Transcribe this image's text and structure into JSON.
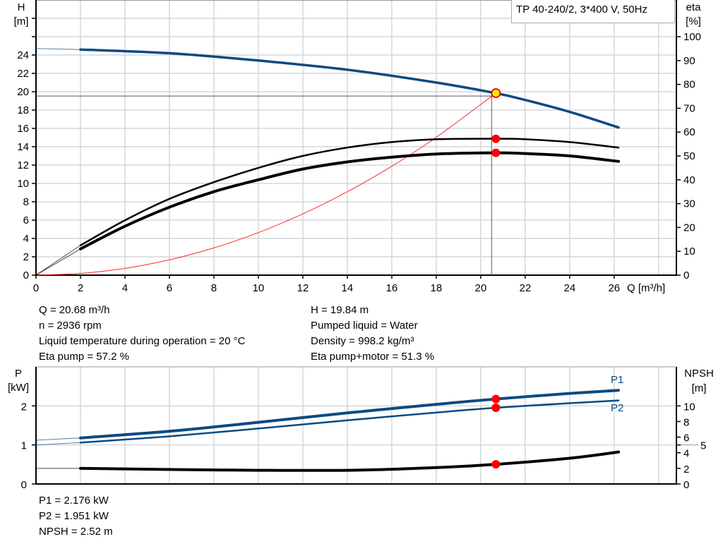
{
  "legend_title": "TP 40-240/2, 3*400 V, 50Hz",
  "colors": {
    "head": "#0a4a82",
    "power": "#0a4a82",
    "eta": "#000000",
    "system": "#ff2a2a",
    "marker": "#ff0000",
    "op_marker_fill": "#ffee00",
    "grid": "#d4d7db"
  },
  "readout_top": {
    "left": [
      "Q = 20.68 m³/h",
      "n = 2936 rpm",
      "Liquid temperature during operation = 20 °C",
      "Eta pump = 57.2 %"
    ],
    "right": [
      "H = 19.84 m",
      "Pumped liquid = Water",
      "Density = 998.2 kg/m³",
      "Eta pump+motor = 51.3 %"
    ]
  },
  "readout_bottom": [
    "P1 = 2.176 kW",
    "P2 = 1.951 kW",
    "NPSH = 2.52 m"
  ],
  "chart_data": [
    {
      "type": "line",
      "xlabel": "Q [m³/h]",
      "ylabel_left": [
        "H",
        "[m]"
      ],
      "ylabel_right": [
        "eta",
        "[%]"
      ],
      "xlim": [
        0,
        28.8
      ],
      "ylim_left": [
        0,
        30
      ],
      "ylim_right": [
        0,
        115.4
      ],
      "x_ticks": [
        0,
        2,
        4,
        6,
        8,
        10,
        12,
        14,
        16,
        18,
        20,
        22,
        24,
        26
      ],
      "y_ticks_left": [
        0,
        2,
        4,
        6,
        8,
        10,
        12,
        14,
        16,
        18,
        20,
        22,
        24
      ],
      "y_ticks_right": [
        0,
        10,
        20,
        30,
        40,
        50,
        60,
        70,
        80,
        90,
        100
      ],
      "grid": true,
      "operating_point": {
        "Q": 20.68,
        "H": 19.84,
        "eta_pump": 57.2,
        "eta_pump_motor": 51.3
      },
      "series": [
        {
          "axis": "left",
          "x": [
            0,
            2,
            6,
            10,
            14,
            18,
            20.68,
            22,
            24,
            26.2
          ],
          "y": [
            24.7,
            24.6,
            24.2,
            23.4,
            22.4,
            21.0,
            19.84,
            19.1,
            17.8,
            16.1
          ]
        },
        {
          "axis": "right",
          "x": [
            0,
            2,
            4,
            6,
            8,
            10,
            12,
            14,
            16,
            18,
            20.68,
            22,
            24,
            26.2
          ],
          "y": [
            0,
            12.5,
            23,
            32,
            39,
            45,
            50,
            53.5,
            55.8,
            57,
            57.2,
            57,
            55.8,
            53.5
          ]
        },
        {
          "axis": "right",
          "x": [
            0,
            2,
            4,
            6,
            8,
            10,
            12,
            14,
            16,
            18,
            20.68,
            22,
            24,
            26.2
          ],
          "y": [
            0,
            11,
            20.5,
            28.5,
            35,
            40,
            44.5,
            47.5,
            49.5,
            50.8,
            51.3,
            51,
            50,
            47.7
          ]
        },
        {
          "axis": "left",
          "x": [
            0,
            2,
            4,
            6,
            8,
            10,
            12,
            14,
            16,
            18,
            20.68
          ],
          "y": [
            0,
            0.19,
            0.74,
            1.67,
            2.97,
            4.64,
            6.68,
            9.09,
            11.87,
            15.03,
            19.84
          ]
        }
      ]
    },
    {
      "type": "line",
      "ylabel_left": [
        "P",
        "[kW]"
      ],
      "ylabel_right": [
        "NPSH",
        "[m]"
      ],
      "xlim": [
        0,
        28.8
      ],
      "ylim_left": [
        0,
        3
      ],
      "ylim_right": [
        0,
        15
      ],
      "y_ticks_left": [
        0,
        1,
        2
      ],
      "y_ticks_right": [
        0,
        2,
        4,
        5,
        6,
        8,
        10
      ],
      "grid": true,
      "series": [
        {
          "name": "P1",
          "axis": "left",
          "x": [
            0,
            2,
            6,
            10,
            14,
            18,
            20.68,
            24,
            26.2
          ],
          "y": [
            1.12,
            1.18,
            1.35,
            1.58,
            1.82,
            2.04,
            2.176,
            2.32,
            2.4
          ]
        },
        {
          "name": "P2",
          "axis": "left",
          "x": [
            0,
            2,
            6,
            10,
            14,
            18,
            20.68,
            24,
            26.2
          ],
          "y": [
            1.0,
            1.06,
            1.22,
            1.42,
            1.63,
            1.83,
            1.951,
            2.07,
            2.14
          ]
        },
        {
          "axis": "right",
          "x": [
            0,
            2,
            8,
            14,
            18,
            20.68,
            24,
            26.2
          ],
          "y": [
            2.0,
            2.0,
            1.8,
            1.75,
            2.1,
            2.52,
            3.3,
            4.1
          ]
        }
      ]
    }
  ]
}
